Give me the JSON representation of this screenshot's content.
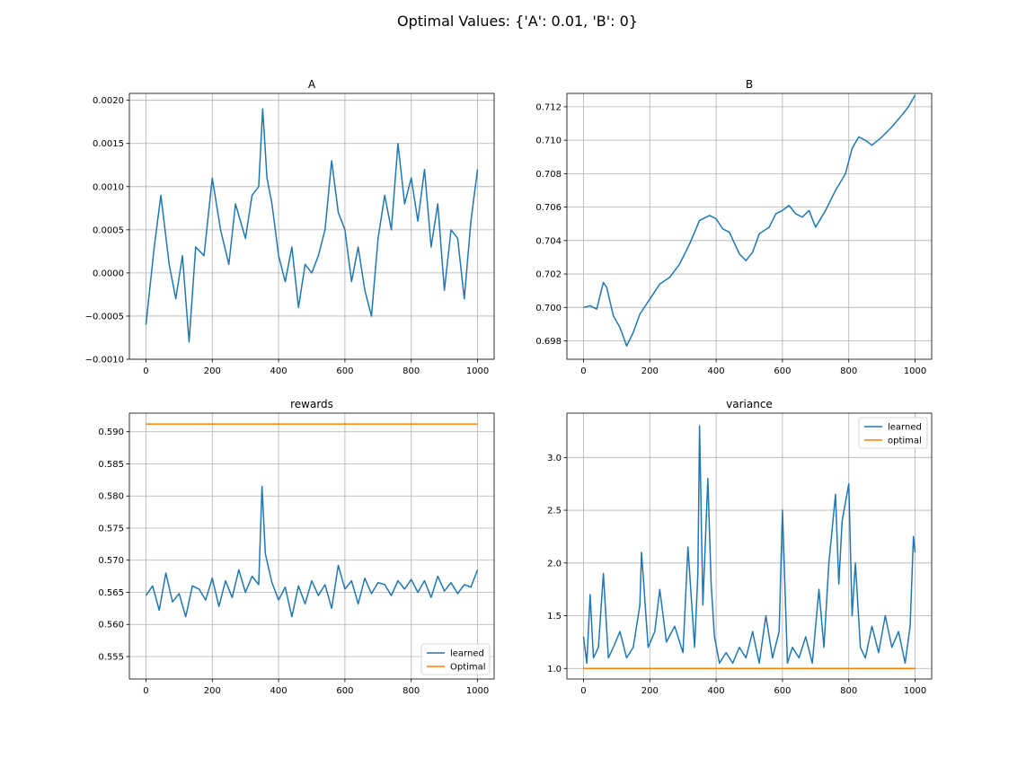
{
  "figure": {
    "suptitle": "Optimal Values: {'A': 0.01, 'B': 0}"
  },
  "colors": {
    "learned": "#1f77b4",
    "optimal": "#ff7f0e",
    "grid": "#b0b0b0",
    "axis": "#000000"
  },
  "chart_data": [
    {
      "id": "A",
      "type": "line",
      "title": "A",
      "xlabel": "",
      "ylabel": "",
      "xlim": [
        -50,
        1050
      ],
      "ylim": [
        -0.001,
        0.00208
      ],
      "xticks": [
        0,
        200,
        400,
        600,
        800,
        1000
      ],
      "yticks": [
        -0.001,
        -0.0005,
        0.0,
        0.0005,
        0.001,
        0.0015,
        0.002
      ],
      "ytick_labels": [
        "−0.0010",
        "−0.0005",
        "0.0000",
        "0.0005",
        "0.0010",
        "0.0015",
        "0.0020"
      ],
      "grid": true,
      "legend": null,
      "series": [
        {
          "key": "learned",
          "x": [
            0,
            25,
            45,
            70,
            90,
            110,
            130,
            150,
            175,
            200,
            225,
            250,
            270,
            300,
            320,
            340,
            352,
            365,
            380,
            400,
            420,
            440,
            460,
            480,
            500,
            520,
            540,
            560,
            580,
            600,
            620,
            640,
            660,
            680,
            700,
            720,
            740,
            760,
            780,
            800,
            820,
            840,
            860,
            880,
            900,
            920,
            940,
            960,
            980,
            1000
          ],
          "y": [
            -0.0006,
            0.0003,
            0.0009,
            0.0001,
            -0.0003,
            0.0002,
            -0.0008,
            0.0003,
            0.0002,
            0.0011,
            0.0005,
            0.0001,
            0.0008,
            0.0004,
            0.0009,
            0.001,
            0.0019,
            0.0011,
            0.0008,
            0.0002,
            -0.0001,
            0.0003,
            -0.0004,
            0.0001,
            0.0,
            0.0002,
            0.0005,
            0.0013,
            0.0007,
            0.0005,
            -0.0001,
            0.0003,
            -0.0002,
            -0.0005,
            0.0004,
            0.0009,
            0.0005,
            0.0015,
            0.0008,
            0.0011,
            0.0006,
            0.0012,
            0.0003,
            0.0008,
            -0.0002,
            0.0005,
            0.0004,
            -0.0003,
            0.0006,
            0.0012
          ]
        }
      ]
    },
    {
      "id": "B",
      "type": "line",
      "title": "B",
      "xlabel": "",
      "ylabel": "",
      "xlim": [
        -50,
        1050
      ],
      "ylim": [
        0.6969,
        0.7128
      ],
      "xticks": [
        0,
        200,
        400,
        600,
        800,
        1000
      ],
      "yticks": [
        0.698,
        0.7,
        0.702,
        0.704,
        0.706,
        0.708,
        0.71,
        0.712
      ],
      "ytick_labels": [
        "0.698",
        "0.700",
        "0.702",
        "0.704",
        "0.706",
        "0.708",
        "0.710",
        "0.712"
      ],
      "grid": true,
      "legend": null,
      "series": [
        {
          "key": "learned",
          "x": [
            0,
            20,
            40,
            60,
            70,
            90,
            110,
            130,
            150,
            170,
            190,
            210,
            230,
            260,
            290,
            320,
            350,
            380,
            400,
            420,
            440,
            470,
            490,
            510,
            530,
            560,
            580,
            600,
            620,
            640,
            660,
            680,
            700,
            730,
            760,
            790,
            810,
            830,
            850,
            870,
            900,
            930,
            960,
            980,
            1000
          ],
          "y": [
            0.7,
            0.7001,
            0.6999,
            0.7015,
            0.7012,
            0.6995,
            0.6988,
            0.6977,
            0.6985,
            0.6996,
            0.7002,
            0.7008,
            0.7014,
            0.7018,
            0.7026,
            0.7038,
            0.7052,
            0.7055,
            0.7053,
            0.7047,
            0.7045,
            0.7032,
            0.7028,
            0.7033,
            0.7044,
            0.7048,
            0.7056,
            0.7058,
            0.7061,
            0.7056,
            0.7054,
            0.7058,
            0.7048,
            0.7058,
            0.707,
            0.708,
            0.7095,
            0.7102,
            0.71,
            0.7097,
            0.7102,
            0.7108,
            0.7115,
            0.712,
            0.7127
          ]
        }
      ]
    },
    {
      "id": "rewards",
      "type": "line",
      "title": "rewards",
      "xlabel": "",
      "ylabel": "",
      "xlim": [
        -50,
        1050
      ],
      "ylim": [
        0.5515,
        0.5929
      ],
      "xticks": [
        0,
        200,
        400,
        600,
        800,
        1000
      ],
      "yticks": [
        0.555,
        0.56,
        0.565,
        0.57,
        0.575,
        0.58,
        0.585,
        0.59
      ],
      "ytick_labels": [
        "0.555",
        "0.560",
        "0.565",
        "0.570",
        "0.575",
        "0.580",
        "0.585",
        "0.590"
      ],
      "grid": true,
      "legend": {
        "position": "lower right",
        "entries": [
          "learned",
          "Optimal"
        ]
      },
      "series": [
        {
          "key": "learned",
          "name": "learned",
          "x": [
            0,
            20,
            40,
            60,
            80,
            100,
            120,
            140,
            160,
            180,
            200,
            220,
            240,
            260,
            280,
            300,
            320,
            340,
            350,
            360,
            380,
            400,
            420,
            440,
            460,
            480,
            500,
            520,
            540,
            560,
            580,
            600,
            620,
            640,
            660,
            680,
            700,
            720,
            740,
            760,
            780,
            800,
            820,
            840,
            860,
            880,
            900,
            920,
            940,
            960,
            980,
            1000
          ],
          "y": [
            0.5645,
            0.566,
            0.5622,
            0.568,
            0.5635,
            0.5648,
            0.5612,
            0.566,
            0.5655,
            0.5638,
            0.5672,
            0.5628,
            0.5668,
            0.5642,
            0.5685,
            0.565,
            0.5675,
            0.5662,
            0.5815,
            0.571,
            0.5665,
            0.5638,
            0.5658,
            0.5612,
            0.566,
            0.5632,
            0.5668,
            0.5645,
            0.5662,
            0.5625,
            0.5692,
            0.5655,
            0.5668,
            0.5632,
            0.5672,
            0.5648,
            0.5665,
            0.5662,
            0.5645,
            0.5668,
            0.5655,
            0.567,
            0.565,
            0.5668,
            0.5642,
            0.5675,
            0.5652,
            0.5665,
            0.5648,
            0.5662,
            0.5658,
            0.5685
          ]
        },
        {
          "key": "optimal",
          "name": "Optimal",
          "x": [
            0,
            1000
          ],
          "y": [
            0.5912,
            0.5912
          ]
        }
      ]
    },
    {
      "id": "variance",
      "type": "line",
      "title": "variance",
      "xlabel": "",
      "ylabel": "",
      "xlim": [
        -50,
        1050
      ],
      "ylim": [
        0.9,
        3.42
      ],
      "xticks": [
        0,
        200,
        400,
        600,
        800,
        1000
      ],
      "yticks": [
        1.0,
        1.5,
        2.0,
        2.5,
        3.0
      ],
      "ytick_labels": [
        "1.0",
        "1.5",
        "2.0",
        "2.5",
        "3.0"
      ],
      "grid": true,
      "legend": {
        "position": "upper right",
        "entries": [
          "learned",
          "optimal"
        ]
      },
      "series": [
        {
          "key": "learned",
          "name": "learned",
          "x": [
            0,
            10,
            20,
            30,
            45,
            60,
            75,
            90,
            110,
            130,
            150,
            170,
            175,
            195,
            215,
            230,
            250,
            275,
            300,
            315,
            335,
            345,
            350,
            360,
            375,
            385,
            395,
            410,
            430,
            450,
            470,
            490,
            510,
            530,
            550,
            570,
            590,
            600,
            615,
            630,
            650,
            670,
            690,
            710,
            725,
            740,
            760,
            770,
            780,
            800,
            810,
            820,
            835,
            850,
            870,
            890,
            910,
            930,
            950,
            970,
            985,
            995,
            1000
          ],
          "y": [
            1.3,
            1.05,
            1.7,
            1.1,
            1.2,
            1.9,
            1.1,
            1.2,
            1.35,
            1.1,
            1.2,
            1.6,
            2.1,
            1.2,
            1.35,
            1.75,
            1.25,
            1.4,
            1.15,
            2.15,
            1.2,
            1.9,
            3.3,
            1.6,
            2.8,
            1.8,
            1.3,
            1.05,
            1.15,
            1.05,
            1.2,
            1.1,
            1.35,
            1.05,
            1.5,
            1.1,
            1.35,
            2.5,
            1.05,
            1.2,
            1.1,
            1.3,
            1.05,
            1.75,
            1.2,
            2.0,
            2.65,
            1.8,
            2.4,
            2.75,
            1.5,
            2.0,
            1.2,
            1.1,
            1.4,
            1.15,
            1.5,
            1.2,
            1.35,
            1.05,
            1.4,
            2.25,
            2.1
          ]
        },
        {
          "key": "optimal",
          "name": "optimal",
          "x": [
            0,
            1000
          ],
          "y": [
            1.0,
            1.0
          ]
        }
      ]
    }
  ]
}
